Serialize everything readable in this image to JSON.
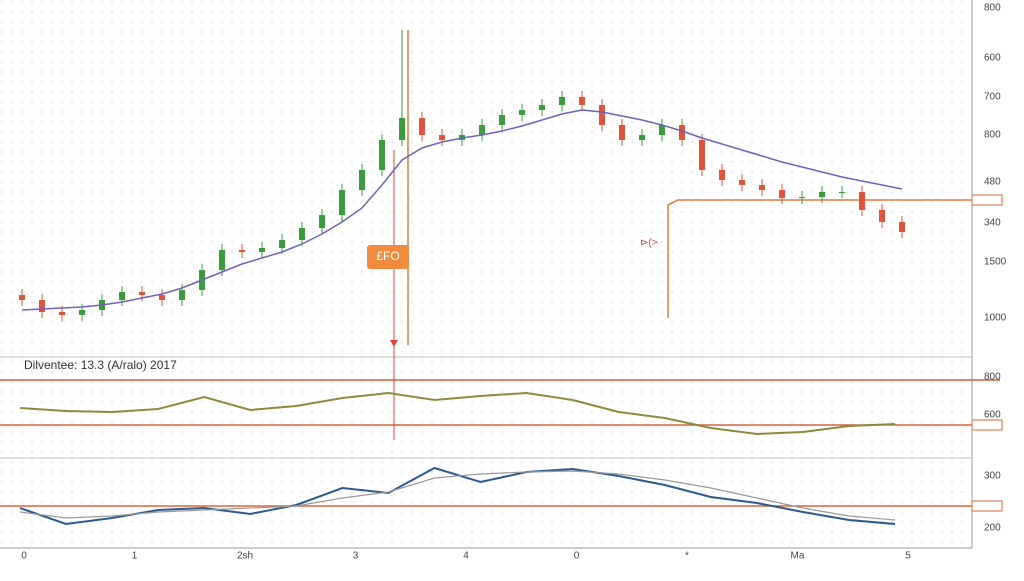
{
  "chart_data": [
    {
      "type": "candlestick",
      "open": [
        55,
        50,
        38,
        35,
        40,
        50,
        58,
        55,
        50,
        60,
        80,
        100,
        98,
        102,
        110,
        122,
        135,
        160,
        180,
        210,
        232,
        215,
        210,
        215,
        225,
        235,
        240,
        245,
        253,
        245,
        225,
        210,
        215,
        225,
        210,
        180,
        170,
        165,
        160,
        152,
        153,
        158,
        158,
        140,
        128
      ],
      "high": [
        61,
        56,
        44,
        46,
        56,
        64,
        64,
        61,
        66,
        86,
        106,
        106,
        108,
        116,
        128,
        141,
        166,
        186,
        216,
        320,
        238,
        221,
        221,
        231,
        241,
        246,
        251,
        259,
        259,
        251,
        231,
        221,
        231,
        231,
        216,
        186,
        176,
        171,
        166,
        159,
        164,
        164,
        164,
        146,
        134
      ],
      "low": [
        44,
        32,
        29,
        29,
        34,
        44,
        49,
        44,
        44,
        54,
        74,
        92,
        92,
        96,
        104,
        116,
        129,
        154,
        174,
        204,
        209,
        204,
        204,
        209,
        219,
        229,
        234,
        239,
        239,
        219,
        204,
        204,
        209,
        204,
        174,
        164,
        159,
        154,
        146,
        146,
        147,
        152,
        134,
        122,
        112
      ],
      "close": [
        50,
        38,
        35,
        40,
        50,
        58,
        55,
        50,
        60,
        80,
        100,
        98,
        102,
        110,
        122,
        135,
        160,
        180,
        210,
        232,
        215,
        210,
        215,
        225,
        235,
        240,
        245,
        253,
        245,
        225,
        210,
        215,
        225,
        210,
        180,
        170,
        165,
        160,
        152,
        153,
        158,
        158,
        140,
        128,
        118
      ],
      "up_color": "#3a9b3f",
      "down_color": "#e0533c",
      "ma": {
        "color": "#6f63b8",
        "values": [
          40,
          41,
          42,
          43,
          45,
          48,
          52,
          56,
          62,
          70,
          78,
          86,
          92,
          98,
          106,
          116,
          128,
          142,
          165,
          190,
          202,
          208,
          212,
          215,
          219,
          224,
          230,
          236,
          240,
          238,
          234,
          230,
          225,
          219,
          212,
          206,
          200,
          194,
          188,
          183,
          178,
          173,
          169,
          165,
          161
        ]
      },
      "ylim": [
        0,
        350
      ],
      "right_labels": [
        "800",
        "600",
        "700",
        "800",
        "480",
        "340",
        "1500",
        "1000"
      ],
      "annotations": [
        "£FO",
        "⊳(>"
      ]
    },
    {
      "type": "line",
      "title": "Dilventee: 13.3 (A/ralo) 2017",
      "series": [
        {
          "color": "#8e8a3c",
          "values": [
            32,
            29,
            28,
            31,
            43,
            30,
            34,
            42,
            47,
            40,
            44,
            47,
            40,
            28,
            22,
            12,
            6,
            8,
            14,
            16
          ]
        }
      ],
      "ylim": [
        0,
        60
      ],
      "right_labels": [
        "800",
        "600"
      ]
    },
    {
      "type": "line",
      "series": [
        {
          "color": "#2d5a8c",
          "values": [
            32,
            16,
            22,
            30,
            32,
            26,
            35,
            52,
            47,
            72,
            58,
            68,
            71,
            64,
            55,
            43,
            37,
            28,
            20,
            16
          ]
        },
        {
          "color": "#9a9a9a",
          "values": [
            28,
            22,
            24,
            28,
            30,
            32,
            34,
            42,
            48,
            62,
            66,
            68,
            69,
            66,
            60,
            52,
            42,
            32,
            24,
            20
          ]
        }
      ],
      "ylim": [
        0,
        80
      ],
      "right_labels": [
        "300",
        "200"
      ],
      "x_labels": [
        "0",
        "1",
        "2sh",
        "3",
        "4",
        "0",
        "*",
        "Ma",
        "5"
      ]
    }
  ]
}
